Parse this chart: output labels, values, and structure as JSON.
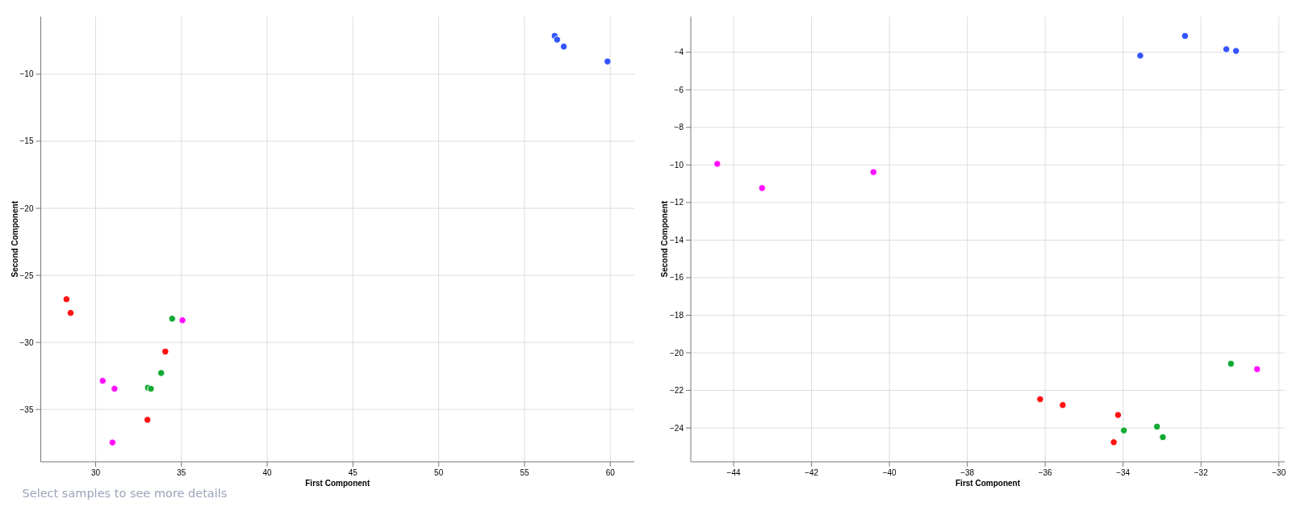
{
  "chart_data": [
    {
      "type": "scatter",
      "xlabel": "First Component",
      "ylabel": "Second Component",
      "xlim": [
        26.8,
        61.4
      ],
      "ylim": [
        -38.9,
        -5.7
      ],
      "xticks": [
        30,
        35,
        40,
        45,
        50,
        55,
        60
      ],
      "yticks": [
        {
          "value": -35,
          "label": "−35"
        },
        {
          "value": -30,
          "label": "−30"
        },
        {
          "value": -25,
          "label": "−25"
        },
        {
          "value": -20,
          "label": "−20"
        },
        {
          "value": -15,
          "label": "−15"
        },
        {
          "value": -10,
          "label": "−10"
        }
      ],
      "grid": true,
      "marker": "circle",
      "series": [
        {
          "color": "#3355ff",
          "x": [
            56.76,
            56.9,
            57.29,
            59.84
          ],
          "values": [
            -7.14,
            -7.42,
            -7.94,
            -9.05
          ]
        },
        {
          "color": "#ff1111",
          "x": [
            28.3,
            28.54,
            34.06,
            33.02
          ],
          "values": [
            -26.78,
            -27.8,
            -30.68,
            -35.77
          ]
        },
        {
          "color": "#11aa33",
          "x": [
            34.46,
            33.82,
            33.05,
            33.22
          ],
          "values": [
            -28.23,
            -32.28,
            -33.38,
            -33.45
          ]
        },
        {
          "color": "#ff11ff",
          "x": [
            35.06,
            30.41,
            31.1,
            30.98
          ],
          "values": [
            -28.35,
            -32.86,
            -33.45,
            -37.46
          ]
        }
      ],
      "annotations": [
        "Select samples to see more details"
      ]
    },
    {
      "type": "scatter",
      "xlabel": "First Component",
      "ylabel": "Second Component",
      "xlim": [
        -45.1,
        -29.85
      ],
      "ylim": [
        -25.8,
        -2.1
      ],
      "xticks": [
        {
          "value": -44,
          "label": "−44"
        },
        {
          "value": -42,
          "label": "−42"
        },
        {
          "value": -40,
          "label": "−40"
        },
        {
          "value": -38,
          "label": "−38"
        },
        {
          "value": -36,
          "label": "−36"
        },
        {
          "value": -34,
          "label": "−34"
        },
        {
          "value": -32,
          "label": "−32"
        },
        {
          "value": -30,
          "label": "−30"
        }
      ],
      "yticks": [
        {
          "value": -24,
          "label": "−24"
        },
        {
          "value": -22,
          "label": "−22"
        },
        {
          "value": -20,
          "label": "−20"
        },
        {
          "value": -18,
          "label": "−18"
        },
        {
          "value": -16,
          "label": "−16"
        },
        {
          "value": -14,
          "label": "−14"
        },
        {
          "value": -12,
          "label": "−12"
        },
        {
          "value": -10,
          "label": "−10"
        },
        {
          "value": -8,
          "label": "−8"
        },
        {
          "value": -6,
          "label": "−6"
        },
        {
          "value": -4,
          "label": "−4"
        }
      ],
      "grid": true,
      "marker": "circle",
      "series": [
        {
          "color": "#3355ff",
          "x": [
            -33.56,
            -32.41,
            -31.35,
            -31.1
          ],
          "values": [
            -4.18,
            -3.13,
            -3.84,
            -3.93
          ]
        },
        {
          "color": "#ff1111",
          "x": [
            -36.13,
            -35.55,
            -34.13,
            -34.24
          ],
          "values": [
            -22.47,
            -22.78,
            -23.31,
            -24.76
          ]
        },
        {
          "color": "#11aa33",
          "x": [
            -33.98,
            -33.13,
            -32.98,
            -31.23
          ],
          "values": [
            -24.13,
            -23.93,
            -24.49,
            -20.58
          ]
        },
        {
          "color": "#ff11ff",
          "x": [
            -44.42,
            -43.27,
            -40.41,
            -30.56
          ],
          "values": [
            -9.94,
            -11.23,
            -10.38,
            -20.87
          ]
        }
      ]
    }
  ]
}
